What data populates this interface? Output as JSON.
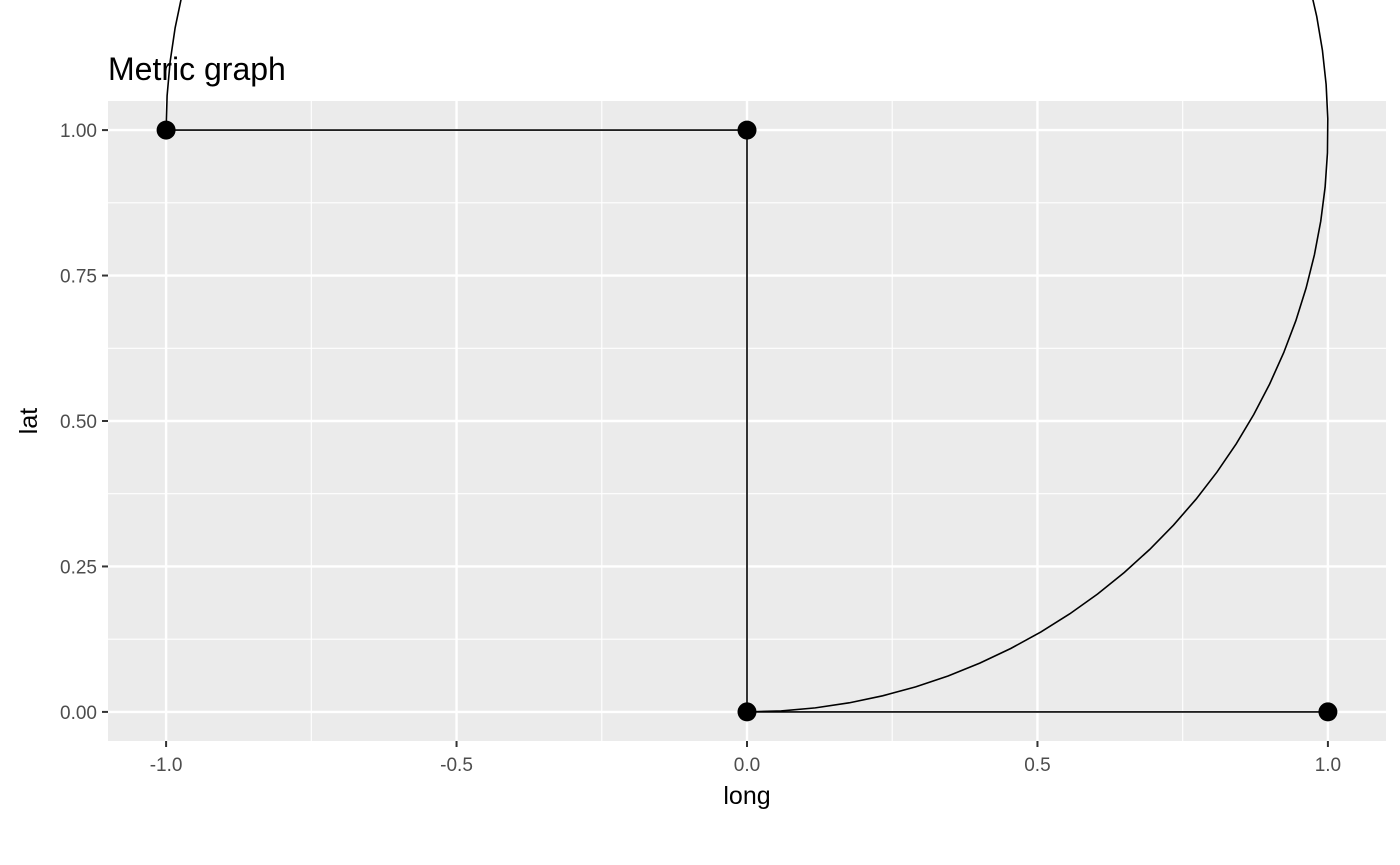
{
  "chart_data": {
    "type": "line",
    "title": "Metric graph",
    "xlabel": "long",
    "ylabel": "lat",
    "xlim": [
      -1.1,
      1.1
    ],
    "ylim": [
      -0.05,
      1.05
    ],
    "x_ticks": [
      -1.0,
      -0.5,
      0.0,
      0.5,
      1.0
    ],
    "x_tick_labels": [
      "-1.0",
      "-0.5",
      "0.0",
      "0.5",
      "1.0"
    ],
    "y_ticks": [
      0.0,
      0.25,
      0.5,
      0.75,
      1.0
    ],
    "y_tick_labels": [
      "0.00",
      "0.25",
      "0.50",
      "0.75",
      "1.00"
    ],
    "grid": true,
    "vertices": [
      {
        "x": -1.0,
        "y": 1.0
      },
      {
        "x": 0.0,
        "y": 1.0
      },
      {
        "x": 0.0,
        "y": 0.0
      },
      {
        "x": 1.0,
        "y": 0.0
      }
    ],
    "edges": [
      {
        "type": "segment",
        "from": [
          -1.0,
          1.0
        ],
        "to": [
          0.0,
          1.0
        ]
      },
      {
        "type": "segment",
        "from": [
          0.0,
          1.0
        ],
        "to": [
          0.0,
          0.0
        ]
      },
      {
        "type": "segment",
        "from": [
          0.0,
          0.0
        ],
        "to": [
          1.0,
          0.0
        ]
      },
      {
        "type": "quarter-circle-arc",
        "center": [
          0.0,
          1.0
        ],
        "radius": 1.0,
        "from": [
          -1.0,
          1.0
        ],
        "to": [
          0.0,
          0.0
        ]
      }
    ]
  }
}
